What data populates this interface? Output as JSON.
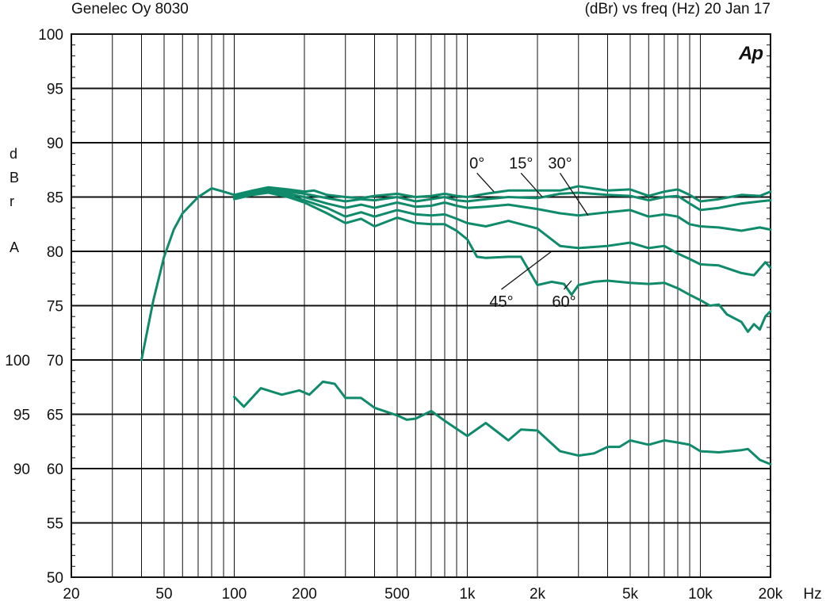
{
  "header": {
    "left_title": "Genelec Oy 8030",
    "right_title": "(dBr) vs freq (Hz) 20 Jan 17"
  },
  "logo_text": "Ap",
  "colors": {
    "curve": "#0f8a6b",
    "grid": "#111111",
    "text": "#111111"
  },
  "chart_data": {
    "type": "line",
    "x_scale": "log",
    "xlim": [
      20,
      20000
    ],
    "ylim": [
      50,
      100
    ],
    "x_ticks": [
      {
        "v": 20,
        "label": "20"
      },
      {
        "v": 50,
        "label": "50"
      },
      {
        "v": 100,
        "label": "100"
      },
      {
        "v": 200,
        "label": "200"
      },
      {
        "v": 500,
        "label": "500"
      },
      {
        "v": 1000,
        "label": "1k"
      },
      {
        "v": 2000,
        "label": "2k"
      },
      {
        "v": 5000,
        "label": "5k"
      },
      {
        "v": 10000,
        "label": "10k"
      },
      {
        "v": 20000,
        "label": "20k"
      }
    ],
    "x_unit_label": "Hz",
    "y_ticks": [
      100,
      95,
      90,
      85,
      80,
      75,
      70,
      65,
      60,
      55,
      50
    ],
    "y_secondary_ticks": [
      {
        "label": "100",
        "at": 70
      },
      {
        "label": "95",
        "at": 65
      },
      {
        "label": "90",
        "at": 60
      }
    ],
    "ylabel_letters": [
      "d",
      "B",
      "r",
      "",
      "A"
    ],
    "grid": true,
    "series": [
      {
        "name": "0°",
        "points": [
          [
            40,
            70
          ],
          [
            45,
            75.5
          ],
          [
            50,
            79.5
          ],
          [
            55,
            82
          ],
          [
            60,
            83.5
          ],
          [
            70,
            85
          ],
          [
            80,
            85.8
          ],
          [
            90,
            85.5
          ],
          [
            100,
            85.2
          ],
          [
            120,
            85.6
          ],
          [
            140,
            85.9
          ],
          [
            170,
            85.7
          ],
          [
            200,
            85.5
          ],
          [
            220,
            85.6
          ],
          [
            250,
            85.2
          ],
          [
            300,
            85
          ],
          [
            350,
            84.9
          ],
          [
            400,
            85.1
          ],
          [
            500,
            85.3
          ],
          [
            600,
            85
          ],
          [
            700,
            85.1
          ],
          [
            800,
            85.3
          ],
          [
            900,
            85.1
          ],
          [
            1000,
            85
          ],
          [
            1200,
            85.3
          ],
          [
            1500,
            85.6
          ],
          [
            2000,
            85.6
          ],
          [
            2500,
            85.6
          ],
          [
            3000,
            86
          ],
          [
            4000,
            85.6
          ],
          [
            5000,
            85.7
          ],
          [
            6000,
            85.1
          ],
          [
            7000,
            85.5
          ],
          [
            8000,
            85.7
          ],
          [
            9000,
            85.2
          ],
          [
            10000,
            84.6
          ],
          [
            12000,
            84.8
          ],
          [
            15000,
            85.2
          ],
          [
            18000,
            85.1
          ],
          [
            20000,
            85.5
          ]
        ]
      },
      {
        "name": "15°",
        "points": [
          [
            100,
            85.1
          ],
          [
            120,
            85.5
          ],
          [
            140,
            85.8
          ],
          [
            170,
            85.5
          ],
          [
            200,
            85.3
          ],
          [
            250,
            84.9
          ],
          [
            300,
            84.6
          ],
          [
            350,
            84.8
          ],
          [
            400,
            84.7
          ],
          [
            500,
            85
          ],
          [
            600,
            84.6
          ],
          [
            700,
            84.8
          ],
          [
            800,
            85
          ],
          [
            900,
            84.7
          ],
          [
            1000,
            84.6
          ],
          [
            1200,
            84.8
          ],
          [
            1500,
            85
          ],
          [
            2000,
            84.9
          ],
          [
            2500,
            85.3
          ],
          [
            3000,
            85.4
          ],
          [
            4000,
            85.2
          ],
          [
            5000,
            85.1
          ],
          [
            6000,
            84.7
          ],
          [
            7000,
            85
          ],
          [
            8000,
            85.1
          ],
          [
            9000,
            84.4
          ],
          [
            10000,
            83.8
          ],
          [
            12000,
            84
          ],
          [
            15000,
            84.4
          ],
          [
            18000,
            84.6
          ],
          [
            20000,
            84.7
          ]
        ]
      },
      {
        "name": "30°",
        "points": [
          [
            100,
            85
          ],
          [
            120,
            85.4
          ],
          [
            140,
            85.6
          ],
          [
            170,
            85.3
          ],
          [
            200,
            85
          ],
          [
            250,
            84.4
          ],
          [
            300,
            84
          ],
          [
            350,
            84.3
          ],
          [
            400,
            84
          ],
          [
            500,
            84.5
          ],
          [
            600,
            84.1
          ],
          [
            700,
            84.2
          ],
          [
            800,
            84.5
          ],
          [
            900,
            84.2
          ],
          [
            1000,
            84
          ],
          [
            1200,
            84.1
          ],
          [
            1500,
            84.3
          ],
          [
            2000,
            83.9
          ],
          [
            2500,
            83.5
          ],
          [
            3000,
            83.3
          ],
          [
            4000,
            83.6
          ],
          [
            5000,
            83.8
          ],
          [
            6000,
            83.2
          ],
          [
            7000,
            83.4
          ],
          [
            8000,
            83.2
          ],
          [
            9000,
            82.5
          ],
          [
            10000,
            82.3
          ],
          [
            12000,
            82.2
          ],
          [
            15000,
            81.9
          ],
          [
            18000,
            82.2
          ],
          [
            20000,
            82
          ]
        ]
      },
      {
        "name": "45°",
        "points": [
          [
            100,
            84.9
          ],
          [
            120,
            85.3
          ],
          [
            140,
            85.5
          ],
          [
            170,
            85.1
          ],
          [
            200,
            84.7
          ],
          [
            250,
            84
          ],
          [
            300,
            83.2
          ],
          [
            350,
            83.6
          ],
          [
            400,
            83.2
          ],
          [
            500,
            83.8
          ],
          [
            600,
            83.4
          ],
          [
            700,
            83.3
          ],
          [
            800,
            83.4
          ],
          [
            900,
            83
          ],
          [
            1000,
            82.6
          ],
          [
            1200,
            82.3
          ],
          [
            1500,
            82.8
          ],
          [
            2000,
            82.1
          ],
          [
            2500,
            80.5
          ],
          [
            3000,
            80.3
          ],
          [
            4000,
            80.5
          ],
          [
            5000,
            80.8
          ],
          [
            6000,
            80.3
          ],
          [
            7000,
            80.5
          ],
          [
            8000,
            79.8
          ],
          [
            9000,
            79.3
          ],
          [
            10000,
            78.8
          ],
          [
            12000,
            78.7
          ],
          [
            15000,
            78
          ],
          [
            17000,
            77.8
          ],
          [
            19000,
            79
          ],
          [
            20000,
            78.5
          ]
        ]
      },
      {
        "name": "60°",
        "points": [
          [
            100,
            84.8
          ],
          [
            120,
            85.2
          ],
          [
            140,
            85.4
          ],
          [
            170,
            85
          ],
          [
            200,
            84.5
          ],
          [
            250,
            83.5
          ],
          [
            300,
            82.6
          ],
          [
            350,
            83
          ],
          [
            400,
            82.3
          ],
          [
            500,
            83.1
          ],
          [
            600,
            82.6
          ],
          [
            700,
            82.5
          ],
          [
            800,
            82.5
          ],
          [
            900,
            81.9
          ],
          [
            1000,
            81.1
          ],
          [
            1100,
            79.5
          ],
          [
            1200,
            79.4
          ],
          [
            1500,
            79.5
          ],
          [
            1700,
            79.5
          ],
          [
            2000,
            76.9
          ],
          [
            2300,
            77.2
          ],
          [
            2600,
            77
          ],
          [
            2800,
            76
          ],
          [
            3000,
            76.9
          ],
          [
            3500,
            77.2
          ],
          [
            4000,
            77.3
          ],
          [
            5000,
            77.1
          ],
          [
            6000,
            77
          ],
          [
            7000,
            77.1
          ],
          [
            8000,
            76.6
          ],
          [
            9000,
            76
          ],
          [
            10000,
            75.5
          ],
          [
            11000,
            75
          ],
          [
            12000,
            75.1
          ],
          [
            13000,
            74.2
          ],
          [
            15000,
            73.5
          ],
          [
            16000,
            72.6
          ],
          [
            17000,
            73.3
          ],
          [
            18000,
            72.8
          ],
          [
            19000,
            74
          ],
          [
            20000,
            74.5
          ]
        ]
      },
      {
        "points": [
          [
            100,
            66.6
          ],
          [
            110,
            65.7
          ],
          [
            130,
            67.4
          ],
          [
            160,
            66.8
          ],
          [
            190,
            67.2
          ],
          [
            210,
            66.8
          ],
          [
            240,
            68
          ],
          [
            270,
            67.8
          ],
          [
            300,
            66.5
          ],
          [
            350,
            66.5
          ],
          [
            400,
            65.6
          ],
          [
            500,
            64.9
          ],
          [
            550,
            64.5
          ],
          [
            600,
            64.6
          ],
          [
            700,
            65.3
          ],
          [
            800,
            64.4
          ],
          [
            1000,
            63
          ],
          [
            1200,
            64.2
          ],
          [
            1500,
            62.6
          ],
          [
            1700,
            63.6
          ],
          [
            2000,
            63.5
          ],
          [
            2500,
            61.6
          ],
          [
            3000,
            61.2
          ],
          [
            3500,
            61.4
          ],
          [
            4000,
            62
          ],
          [
            4500,
            62
          ],
          [
            5000,
            62.6
          ],
          [
            6000,
            62.2
          ],
          [
            7000,
            62.6
          ],
          [
            8000,
            62.4
          ],
          [
            9000,
            62.2
          ],
          [
            10000,
            61.6
          ],
          [
            12000,
            61.5
          ],
          [
            15000,
            61.7
          ],
          [
            16000,
            61.8
          ],
          [
            18000,
            60.8
          ],
          [
            20000,
            60.4
          ]
        ]
      }
    ],
    "annotations": [
      {
        "text": "0°",
        "leader_from": [
          1100,
          87.2
        ],
        "leader_to": [
          1300,
          85.5
        ]
      },
      {
        "text": "15°",
        "leader_from": [
          1700,
          87.2
        ],
        "leader_to": [
          2100,
          85
        ]
      },
      {
        "text": "30°",
        "leader_from": [
          2500,
          87.2
        ],
        "leader_to": [
          3300,
          83.3
        ]
      },
      {
        "text": "45°",
        "leader_from": [
          1400,
          76.5
        ],
        "leader_to": [
          2300,
          80
        ]
      },
      {
        "text": "60°",
        "leader_from": [
          2600,
          76.5
        ],
        "leader_to": [
          2800,
          77.3
        ]
      }
    ]
  }
}
